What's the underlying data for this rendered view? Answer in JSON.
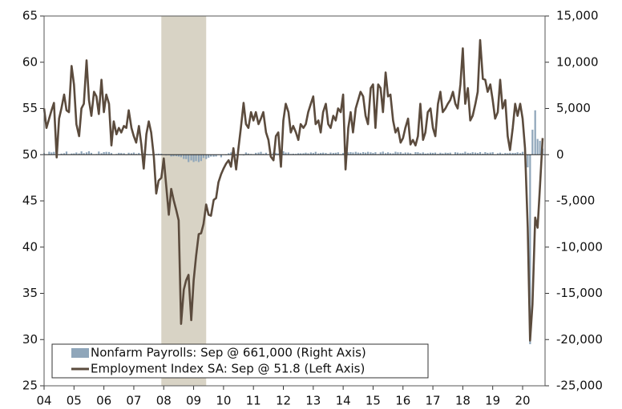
{
  "chart_data": {
    "type": "bar-line",
    "x": [
      2004,
      2004.08,
      2004.17,
      2004.25,
      2004.33,
      2004.42,
      2004.5,
      2004.58,
      2004.67,
      2004.75,
      2004.83,
      2004.92,
      2005,
      2005.08,
      2005.17,
      2005.25,
      2005.33,
      2005.42,
      2005.5,
      2005.58,
      2005.67,
      2005.75,
      2005.83,
      2005.92,
      2006,
      2006.08,
      2006.17,
      2006.25,
      2006.33,
      2006.42,
      2006.5,
      2006.58,
      2006.67,
      2006.75,
      2006.83,
      2006.92,
      2007,
      2007.08,
      2007.17,
      2007.25,
      2007.33,
      2007.42,
      2007.5,
      2007.58,
      2007.67,
      2007.75,
      2007.83,
      2007.92,
      2008,
      2008.08,
      2008.17,
      2008.25,
      2008.33,
      2008.42,
      2008.5,
      2008.58,
      2008.67,
      2008.75,
      2008.83,
      2008.92,
      2009,
      2009.08,
      2009.17,
      2009.25,
      2009.33,
      2009.42,
      2009.5,
      2009.58,
      2009.67,
      2009.75,
      2009.83,
      2009.92,
      2010,
      2010.08,
      2010.17,
      2010.25,
      2010.33,
      2010.42,
      2010.5,
      2010.58,
      2010.67,
      2010.75,
      2010.83,
      2010.92,
      2011,
      2011.08,
      2011.17,
      2011.25,
      2011.33,
      2011.42,
      2011.5,
      2011.58,
      2011.67,
      2011.75,
      2011.83,
      2011.92,
      2012,
      2012.08,
      2012.17,
      2012.25,
      2012.33,
      2012.42,
      2012.5,
      2012.58,
      2012.67,
      2012.75,
      2012.83,
      2012.92,
      2013,
      2013.08,
      2013.17,
      2013.25,
      2013.33,
      2013.42,
      2013.5,
      2013.58,
      2013.67,
      2013.75,
      2013.83,
      2013.92,
      2014,
      2014.08,
      2014.17,
      2014.25,
      2014.33,
      2014.42,
      2014.5,
      2014.58,
      2014.67,
      2014.75,
      2014.83,
      2014.92,
      2015,
      2015.08,
      2015.17,
      2015.25,
      2015.33,
      2015.42,
      2015.5,
      2015.58,
      2015.67,
      2015.75,
      2015.83,
      2015.92,
      2016,
      2016.08,
      2016.17,
      2016.25,
      2016.33,
      2016.42,
      2016.5,
      2016.58,
      2016.67,
      2016.75,
      2016.83,
      2016.92,
      2017,
      2017.08,
      2017.17,
      2017.25,
      2017.33,
      2017.42,
      2017.5,
      2017.58,
      2017.67,
      2017.75,
      2017.83,
      2017.92,
      2018,
      2018.08,
      2018.17,
      2018.25,
      2018.33,
      2018.42,
      2018.5,
      2018.58,
      2018.67,
      2018.75,
      2018.83,
      2018.92,
      2019,
      2019.08,
      2019.17,
      2019.25,
      2019.33,
      2019.42,
      2019.5,
      2019.58,
      2019.67,
      2019.75,
      2019.83,
      2019.92,
      2020,
      2020.08,
      2020.17,
      2020.25,
      2020.33,
      2020.42,
      2020.5,
      2020.58,
      2020.67
    ],
    "series": [
      {
        "name": "Nonfarm Payrolls: Sep @ 661,000 (Right Axis)",
        "color": "#8fa6ba",
        "axis": "y2",
        "type": "bar",
        "values": [
          160,
          40,
          320,
          250,
          310,
          80,
          40,
          120,
          160,
          340,
          60,
          130,
          140,
          240,
          140,
          360,
          170,
          250,
          370,
          200,
          60,
          80,
          340,
          160,
          280,
          310,
          290,
          180,
          20,
          80,
          200,
          180,
          160,
          0,
          210,
          160,
          230,
          90,
          190,
          60,
          140,
          80,
          -30,
          -20,
          70,
          80,
          110,
          100,
          10,
          -80,
          -60,
          -200,
          -180,
          -170,
          -210,
          -270,
          -460,
          -480,
          -800,
          -620,
          -790,
          -700,
          -800,
          -690,
          -350,
          -470,
          -330,
          -210,
          -220,
          -200,
          0,
          -280,
          10,
          -60,
          160,
          250,
          520,
          -130,
          -70,
          -40,
          -80,
          240,
          130,
          80,
          40,
          200,
          230,
          310,
          100,
          210,
          60,
          90,
          240,
          200,
          140,
          200,
          370,
          230,
          240,
          80,
          110,
          90,
          160,
          150,
          160,
          220,
          150,
          240,
          190,
          310,
          140,
          190,
          220,
          190,
          90,
          230,
          190,
          210,
          260,
          50,
          190,
          170,
          260,
          280,
          240,
          310,
          230,
          200,
          280,
          220,
          310,
          260,
          190,
          270,
          70,
          250,
          330,
          170,
          260,
          170,
          150,
          320,
          260,
          270,
          130,
          240,
          230,
          170,
          40,
          280,
          270,
          170,
          250,
          120,
          160,
          220,
          200,
          230,
          90,
          210,
          140,
          220,
          190,
          220,
          20,
          270,
          230,
          170,
          180,
          320,
          200,
          180,
          270,
          230,
          180,
          280,
          110,
          280,
          200,
          230,
          270,
          10,
          150,
          220,
          90,
          190,
          160,
          210,
          190,
          190,
          260,
          180,
          310,
          270,
          -1370,
          -20500,
          2700,
          4800,
          1700,
          1500,
          661
        ]
      },
      {
        "name": "Employment Index SA: Sep @ 51.8 (Left Axis)",
        "color": "#5b4b3d",
        "axis": "y",
        "type": "line",
        "values": [
          55.0,
          52.9,
          53.9,
          54.8,
          55.6,
          49.7,
          53.9,
          55.0,
          56.5,
          54.8,
          54.6,
          59.6,
          57.6,
          53.3,
          52.0,
          55.0,
          55.5,
          60.2,
          55.9,
          54.2,
          56.8,
          56.3,
          54.4,
          58.1,
          54.6,
          56.5,
          55.5,
          51.0,
          53.6,
          52.2,
          52.9,
          52.4,
          53.1,
          52.9,
          54.8,
          52.9,
          52.0,
          51.3,
          53.1,
          51.1,
          48.5,
          52.2,
          53.6,
          52.4,
          49.8,
          45.8,
          47.2,
          47.5,
          49.6,
          46.8,
          43.5,
          46.3,
          45.1,
          44.0,
          42.9,
          31.7,
          35.4,
          36.4,
          37.0,
          32.1,
          36.4,
          39.0,
          41.4,
          41.5,
          42.5,
          44.6,
          43.5,
          43.4,
          45.1,
          45.3,
          47.0,
          47.9,
          48.5,
          49.0,
          49.4,
          48.7,
          50.7,
          48.4,
          50.7,
          52.9,
          55.6,
          53.3,
          52.9,
          54.6,
          53.7,
          54.6,
          53.3,
          53.9,
          54.6,
          52.4,
          51.6,
          49.8,
          49.4,
          52.0,
          52.4,
          48.7,
          53.7,
          55.5,
          54.6,
          52.4,
          53.1,
          52.4,
          51.6,
          53.3,
          52.9,
          53.3,
          54.6,
          55.5,
          56.3,
          53.3,
          53.7,
          52.4,
          54.6,
          55.5,
          53.3,
          52.9,
          54.2,
          53.7,
          55.0,
          54.6,
          56.5,
          48.4,
          52.9,
          54.6,
          52.4,
          55.0,
          55.9,
          56.8,
          56.3,
          54.2,
          53.3,
          57.2,
          57.6,
          52.9,
          57.6,
          57.2,
          54.6,
          58.9,
          56.3,
          56.5,
          53.7,
          52.4,
          52.9,
          51.3,
          51.8,
          52.9,
          53.9,
          51.1,
          51.6,
          51.0,
          52.0,
          55.5,
          51.6,
          52.4,
          54.6,
          55.0,
          52.9,
          52.0,
          55.5,
          56.8,
          54.6,
          55.0,
          55.5,
          55.9,
          56.8,
          55.5,
          55.0,
          57.6,
          61.5,
          55.5,
          57.2,
          53.7,
          54.2,
          55.5,
          56.8,
          62.4,
          58.2,
          58.1,
          56.8,
          57.6,
          55.9,
          53.9,
          54.6,
          58.1,
          55.0,
          55.9,
          52.0,
          50.5,
          52.9,
          55.5,
          54.2,
          55.5,
          53.9,
          50.7,
          42.1,
          29.9,
          33.8,
          43.2,
          42.1,
          46.6,
          51.8
        ]
      }
    ],
    "shaded_regions": [
      [
        2007.92,
        2009.42
      ]
    ],
    "shade_color": "#d8d3c5",
    "xlim": [
      2004,
      2020.75
    ],
    "xticks": [
      {
        "value": 2004,
        "label": "04"
      },
      {
        "value": 2005,
        "label": "05"
      },
      {
        "value": 2006,
        "label": "06"
      },
      {
        "value": 2007,
        "label": "07"
      },
      {
        "value": 2008,
        "label": "08"
      },
      {
        "value": 2009,
        "label": "09"
      },
      {
        "value": 2010,
        "label": "10"
      },
      {
        "value": 2011,
        "label": "11"
      },
      {
        "value": 2012,
        "label": "12"
      },
      {
        "value": 2013,
        "label": "13"
      },
      {
        "value": 2014,
        "label": "14"
      },
      {
        "value": 2015,
        "label": "15"
      },
      {
        "value": 2016,
        "label": "16"
      },
      {
        "value": 2017,
        "label": "17"
      },
      {
        "value": 2018,
        "label": "18"
      },
      {
        "value": 2019,
        "label": "19"
      },
      {
        "value": 2020,
        "label": "20"
      }
    ],
    "ylim": [
      25,
      65
    ],
    "yticks": [
      25,
      30,
      35,
      40,
      45,
      50,
      55,
      60,
      65
    ],
    "y2lim": [
      -25000,
      15000
    ],
    "y2ticks": [
      {
        "value": -25000,
        "label": "-25,000"
      },
      {
        "value": -20000,
        "label": "-20,000"
      },
      {
        "value": -15000,
        "label": "-15,000"
      },
      {
        "value": -10000,
        "label": "-10,000"
      },
      {
        "value": -5000,
        "label": "-5,000"
      },
      0,
      {
        "value": 5000,
        "label": "5,000"
      },
      {
        "value": 10000,
        "label": "10,000"
      },
      {
        "value": 15000,
        "label": "15,000"
      }
    ],
    "legend": "lower left"
  }
}
